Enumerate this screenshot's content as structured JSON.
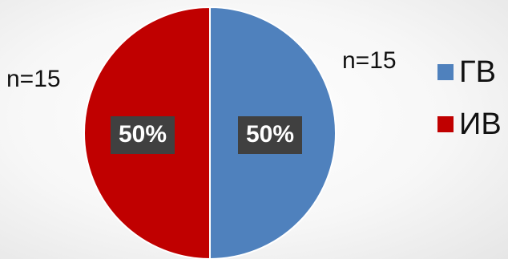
{
  "chart_data": {
    "type": "pie",
    "categories": [
      "ГВ",
      "ИВ"
    ],
    "values": [
      50,
      50
    ],
    "counts": [
      "n=15",
      "n=15"
    ],
    "percent_labels": [
      "50%",
      "50%"
    ],
    "colors": [
      "#4f81bd",
      "#c00000"
    ],
    "legend_position": "right",
    "title": ""
  },
  "legend": {
    "items": [
      {
        "label": "ГВ",
        "color": "#4f81bd"
      },
      {
        "label": "ИВ",
        "color": "#c00000"
      }
    ]
  }
}
